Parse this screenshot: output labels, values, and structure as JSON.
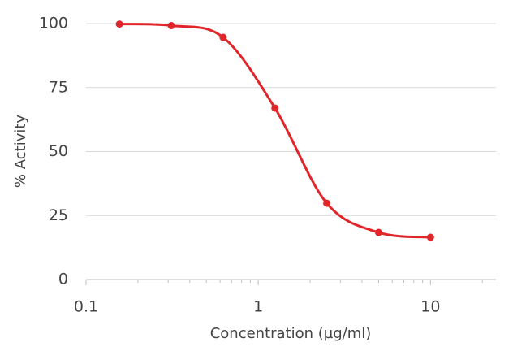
{
  "chart_data": {
    "type": "line",
    "xlabel": "Concentration (µg/ml)",
    "ylabel": "% Activity",
    "x": [
      0.15625,
      0.3125,
      0.625,
      1.25,
      2.5,
      5,
      10
    ],
    "series": [
      {
        "name": "% Activity",
        "color": "#e0262a",
        "values": [
          99.8,
          99.2,
          94.6,
          67.0,
          29.8,
          18.4,
          16.5
        ]
      }
    ],
    "xscale": "log",
    "xlim": [
      0.1,
      24
    ],
    "xticks": [
      0.1,
      1,
      10
    ],
    "xminorticks": [
      0.2,
      0.3,
      0.4,
      0.5,
      0.6,
      0.7,
      0.8,
      0.9,
      2,
      3,
      4,
      5,
      6,
      7,
      8,
      9,
      20
    ],
    "ylim": [
      0,
      100
    ],
    "yticks": [
      0,
      25,
      50,
      75,
      100
    ],
    "grid": true
  }
}
